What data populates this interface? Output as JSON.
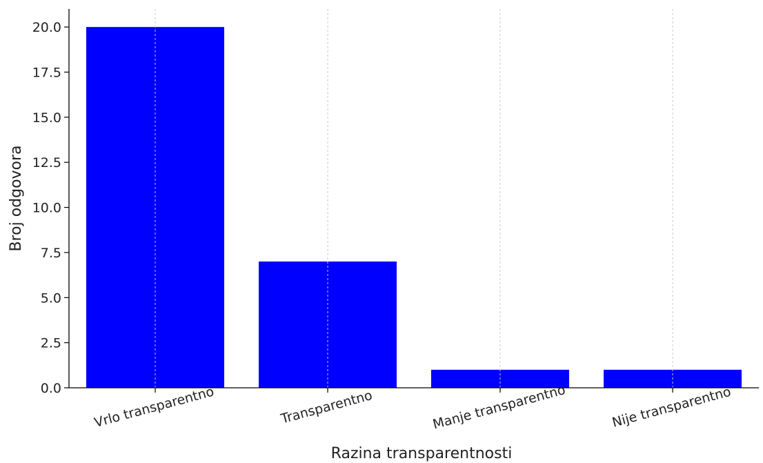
{
  "chart_data": {
    "type": "bar",
    "title": "",
    "xlabel": "Razina transparentnosti",
    "ylabel": "Broj odgovora",
    "categories": [
      "Vrlo transparentno",
      "Transparentno",
      "Manje transparentno",
      "Nije transparentno"
    ],
    "values": [
      20,
      7,
      1,
      1
    ],
    "ylim": [
      0,
      21
    ],
    "yticks": [
      0,
      2.5,
      5,
      7.5,
      10,
      12.5,
      15,
      17.5,
      20
    ],
    "ytick_labels": [
      "0.0",
      "2.5",
      "5.0",
      "7.5",
      "10.0",
      "12.5",
      "15.0",
      "17.5",
      "20.0"
    ],
    "grid": "x-dashed",
    "bar_color": "#0000ff",
    "legend": "none"
  }
}
